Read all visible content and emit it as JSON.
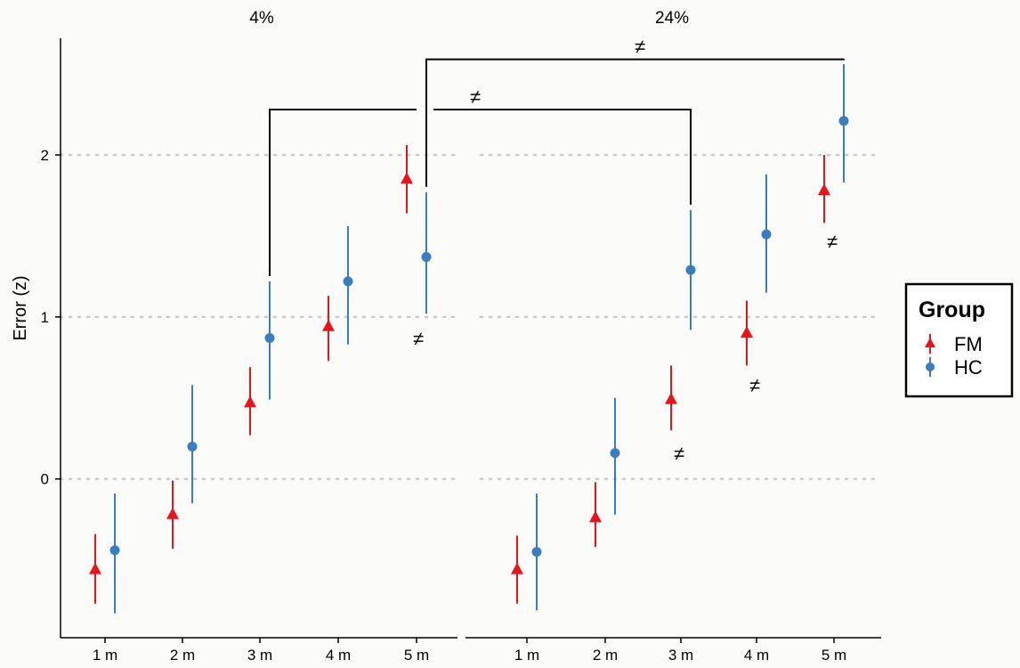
{
  "chart_data": {
    "type": "scatter",
    "ylabel": "Error (z)",
    "xlabel": "",
    "ylim": [
      -0.98,
      2.72
    ],
    "yticks": [
      0,
      1,
      2
    ],
    "ytick_labels": [
      "0",
      "1",
      "2"
    ],
    "grid": "horizontal dotted at y ticks",
    "categories": [
      "1 m",
      "2 m",
      "3 m",
      "4 m",
      "5 m"
    ],
    "facets": [
      {
        "title": "4%",
        "series": [
          {
            "name": "FM",
            "color": "#e8141c",
            "marker": "triangle",
            "values": [
              -0.56,
              -0.22,
              0.47,
              0.94,
              1.85
            ],
            "lower": [
              -0.77,
              -0.43,
              0.27,
              0.73,
              1.64
            ],
            "upper": [
              -0.34,
              -0.01,
              0.69,
              1.13,
              2.06
            ]
          },
          {
            "name": "HC",
            "color": "#3a7dbf",
            "marker": "circle",
            "values": [
              -0.44,
              0.2,
              0.87,
              1.22,
              1.37
            ],
            "lower": [
              -0.83,
              -0.15,
              0.49,
              0.83,
              1.02
            ],
            "upper": [
              -0.09,
              0.58,
              1.22,
              1.56,
              1.77
            ]
          }
        ],
        "annotations": [
          {
            "text": "≠",
            "category": "5 m",
            "y": 0.87
          }
        ]
      },
      {
        "title": "24%",
        "series": [
          {
            "name": "FM",
            "color": "#e8141c",
            "marker": "triangle",
            "values": [
              -0.56,
              -0.24,
              0.49,
              0.9,
              1.78
            ],
            "lower": [
              -0.77,
              -0.42,
              0.3,
              0.7,
              1.58
            ],
            "upper": [
              -0.35,
              -0.02,
              0.7,
              1.1,
              2.0
            ]
          },
          {
            "name": "HC",
            "color": "#3a7dbf",
            "marker": "circle",
            "values": [
              -0.45,
              0.16,
              1.29,
              1.51,
              2.21
            ],
            "lower": [
              -0.81,
              -0.22,
              0.92,
              1.15,
              1.83
            ],
            "upper": [
              -0.09,
              0.5,
              1.66,
              1.88,
              2.56
            ]
          }
        ],
        "annotations": [
          {
            "text": "≠",
            "category": "3 m",
            "y": 0.16
          },
          {
            "text": "≠",
            "category": "4 m",
            "y": 0.58
          },
          {
            "text": "≠",
            "category": "5 m",
            "y": 1.47
          }
        ]
      }
    ],
    "comparisons": [
      {
        "text": "≠",
        "from": {
          "facet": "4%",
          "category": "3 m"
        },
        "to": {
          "facet": "24%",
          "category": "3 m"
        },
        "y": 2.28
      },
      {
        "text": "≠",
        "from": {
          "facet": "4%",
          "category": "5 m"
        },
        "to": {
          "facet": "24%",
          "category": "5 m"
        },
        "y": 2.59
      }
    ],
    "legend": {
      "title": "Group",
      "placement": "right",
      "entries": [
        "FM",
        "HC"
      ]
    }
  }
}
